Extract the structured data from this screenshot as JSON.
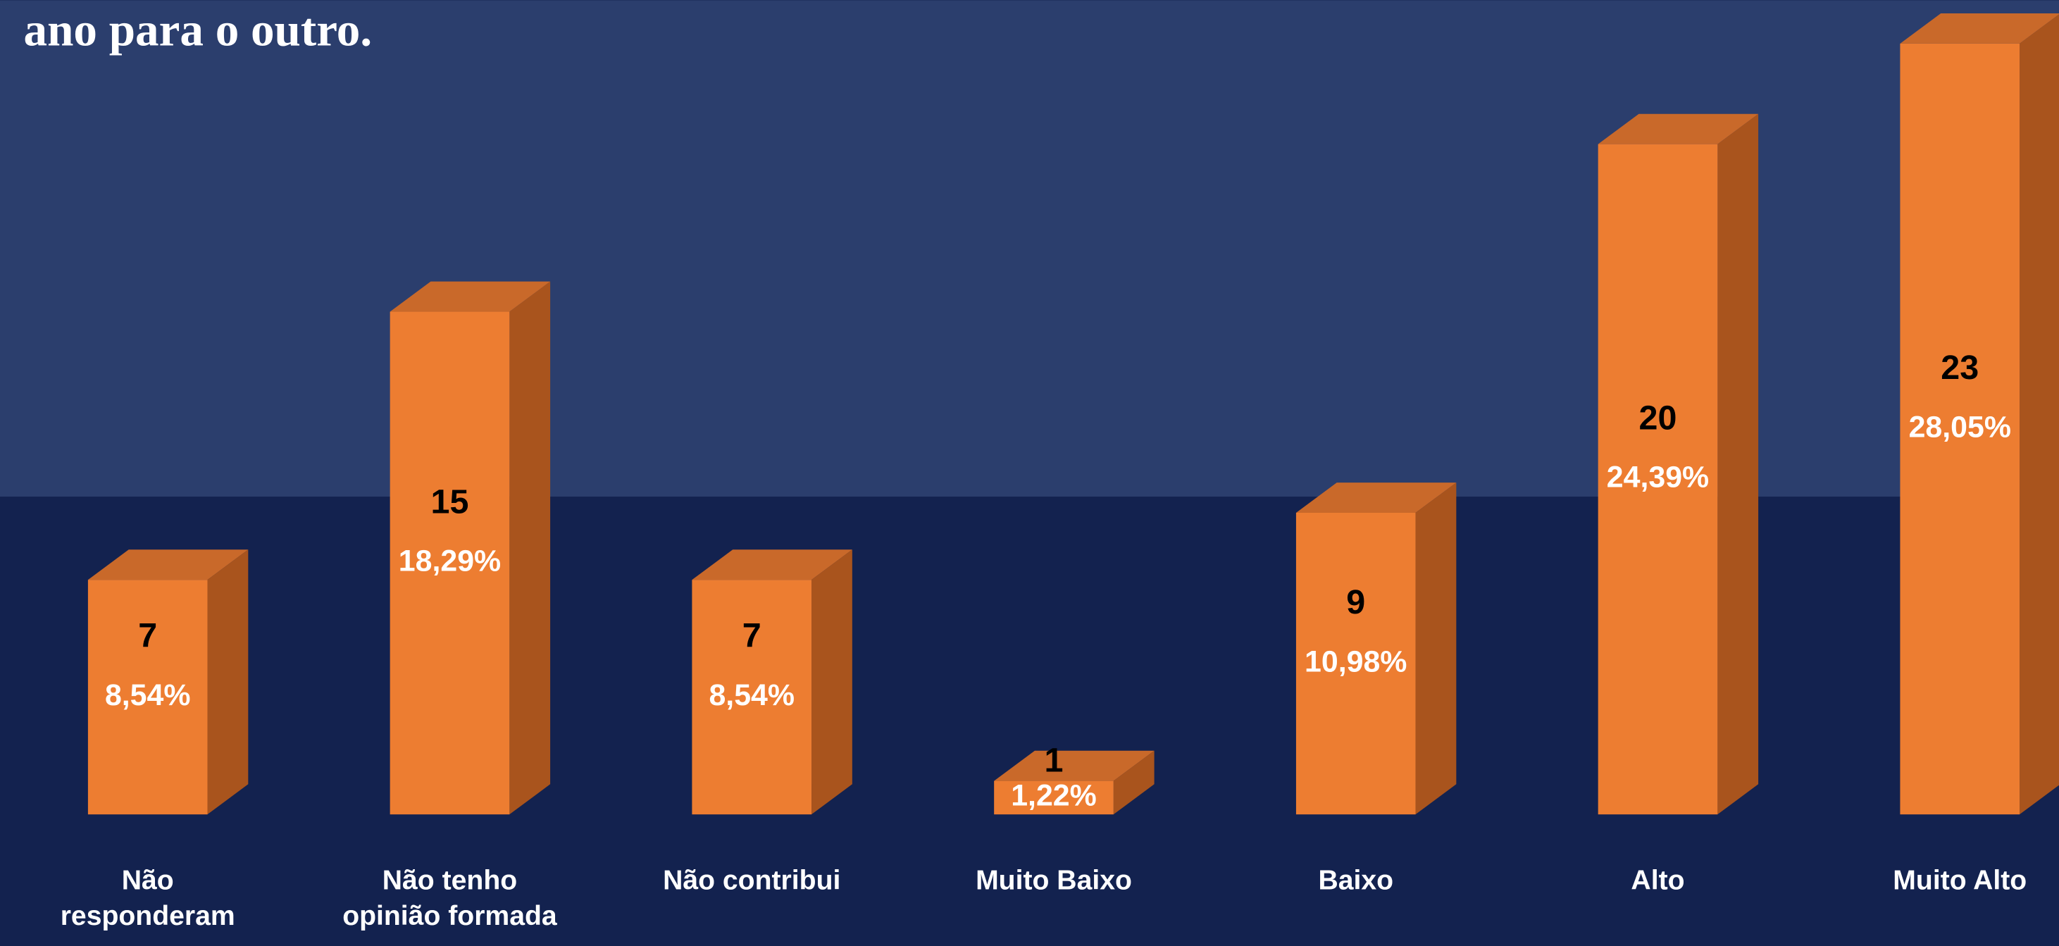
{
  "chart_data": {
    "type": "bar3d",
    "title": "ano para o outro.",
    "categories": [
      "Não responderam",
      "Não tenho opinião formada",
      "Não contribui",
      "Muito Baixo",
      "Baixo",
      "Alto",
      "Muito Alto"
    ],
    "values": [
      7,
      15,
      7,
      1,
      9,
      20,
      23
    ],
    "percentages": [
      8.54,
      18.29,
      8.54,
      1.22,
      10.98,
      24.39,
      28.05
    ],
    "percentage_labels": [
      "8,54%",
      "18,29%",
      "8,54%",
      "1,22%",
      "10,98%",
      "24,39%",
      "28,05%"
    ],
    "color": "#ed7d31",
    "ylim": [
      0,
      23
    ]
  }
}
